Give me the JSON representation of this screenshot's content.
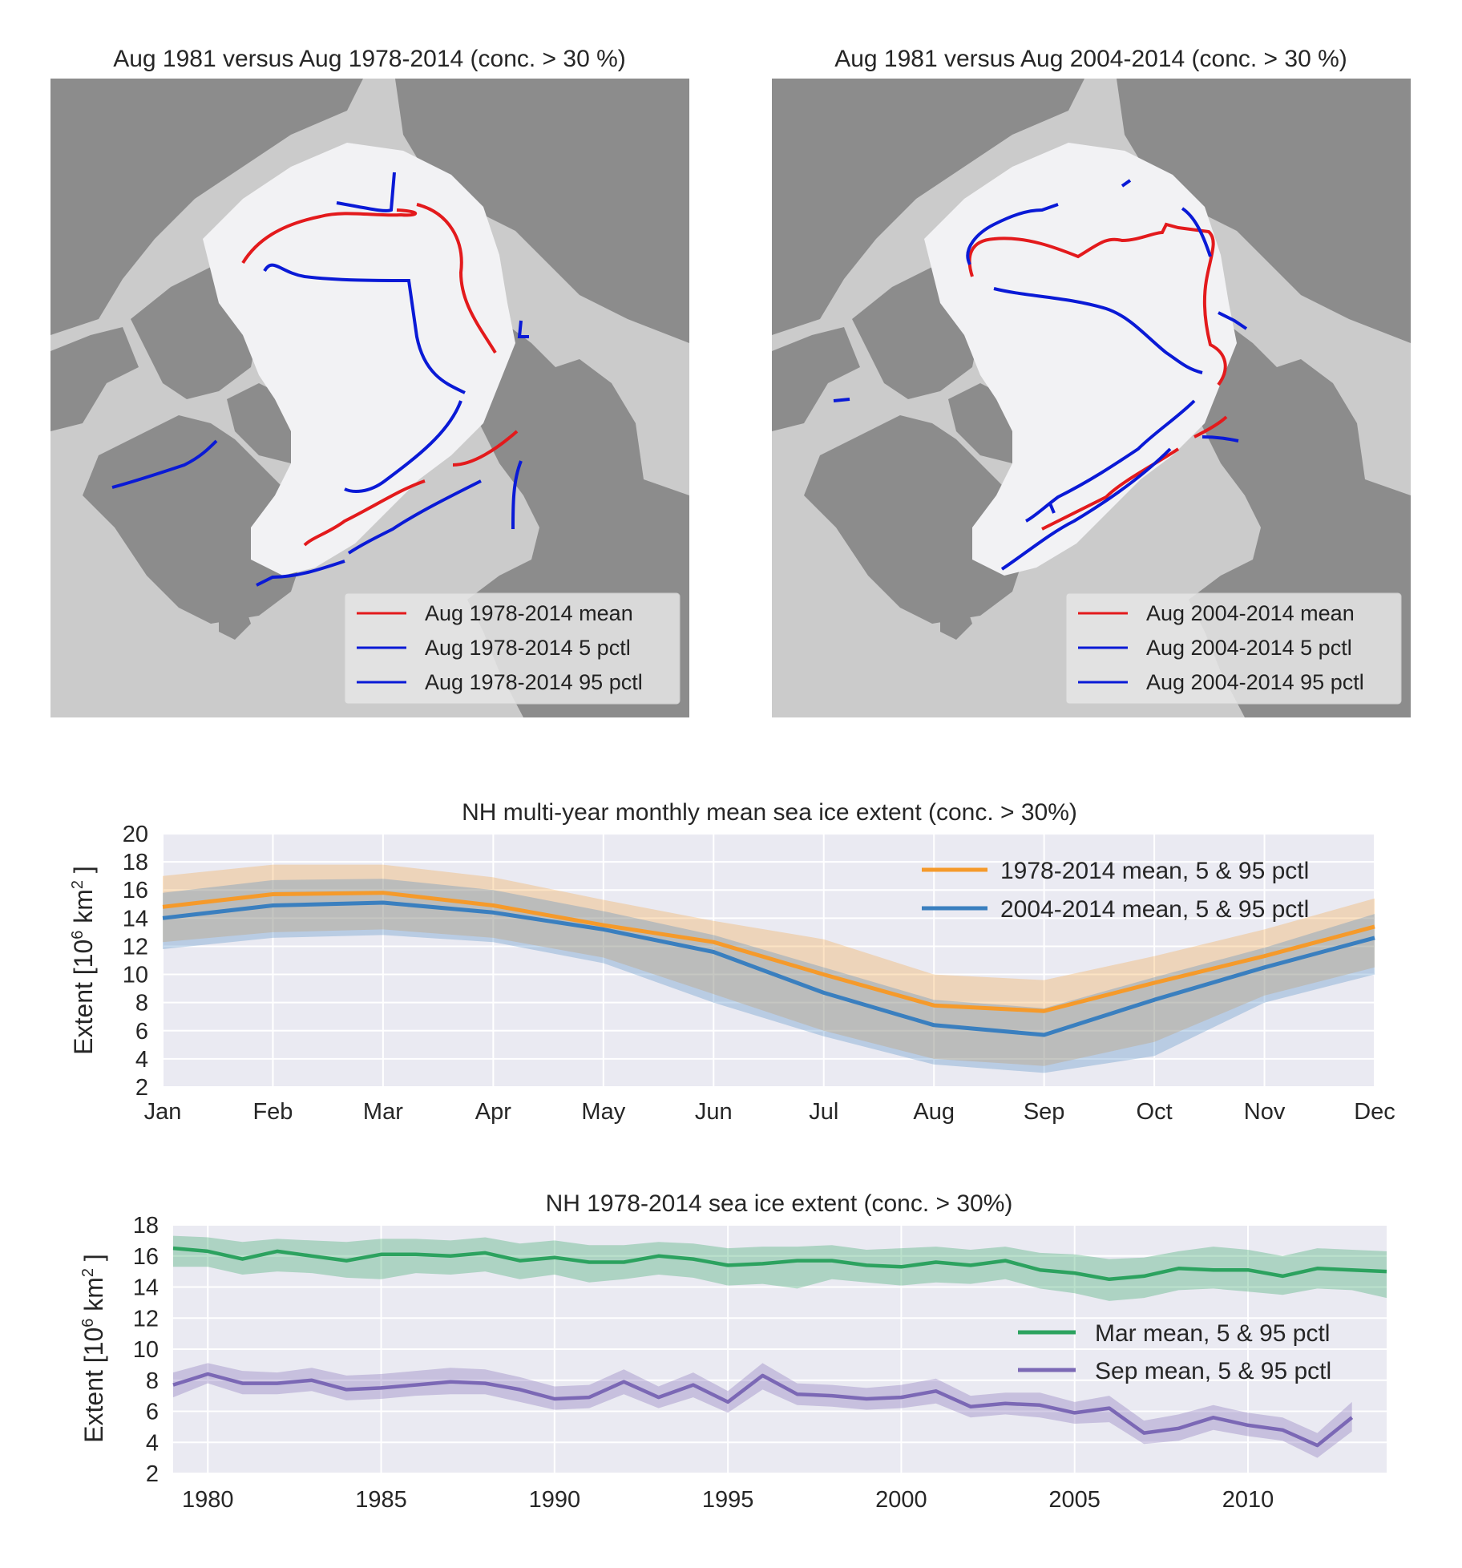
{
  "colors": {
    "mean_line": "#e31a1c",
    "pctl_line": "#0a1ad6",
    "land": "#8c8c8c",
    "ocean": "#cbcbcb",
    "ice": "#f2f2f4",
    "axes_bg": "#eaeaf2",
    "orange": "#f59a2b",
    "blue": "#3a7fbf",
    "green": "#2ca25f",
    "purple": "#7b68b5"
  },
  "maps": [
    {
      "title": "Aug 1981 versus Aug 1978-2014 (conc. > 30 %)",
      "legend": [
        "Aug 1978-2014 mean",
        "Aug 1978-2014 5 pctl",
        "Aug 1978-2014 95 pctl"
      ]
    },
    {
      "title": "Aug 1981 versus Aug 2004-2014 (conc. > 30 %)",
      "legend": [
        "Aug 2004-2014 mean",
        "Aug 2004-2014 5 pctl",
        "Aug 2004-2014 95 pctl"
      ]
    }
  ],
  "chart_data": [
    {
      "type": "line",
      "title": "NH multi-year monthly mean sea ice extent (conc. > 30%)",
      "ylabel": "Extent [10^6 km^2 ]",
      "ylabel_parts": {
        "pre": "Extent [10",
        "exp1": "6",
        "mid": " km",
        "exp2": "2",
        "post": " ]"
      },
      "categories": [
        "Jan",
        "Feb",
        "Mar",
        "Apr",
        "May",
        "Jun",
        "Jul",
        "Aug",
        "Sep",
        "Oct",
        "Nov",
        "Dec"
      ],
      "ylim": [
        2,
        20
      ],
      "yticks": [
        2,
        4,
        6,
        8,
        10,
        12,
        14,
        16,
        18,
        20
      ],
      "grid": true,
      "legend_position": "top-right",
      "series": [
        {
          "name": "1978-2014 mean, 5 & 95 pctl",
          "color": "orange",
          "mean": [
            14.8,
            15.7,
            15.8,
            14.9,
            13.5,
            12.3,
            10.0,
            7.8,
            7.4,
            9.4,
            11.3,
            13.4
          ],
          "p5": [
            12.3,
            13.0,
            13.2,
            12.6,
            11.2,
            8.6,
            6.0,
            4.0,
            3.5,
            5.2,
            8.5,
            10.5
          ],
          "p95": [
            17.0,
            17.8,
            17.8,
            16.9,
            15.3,
            13.8,
            12.5,
            10.0,
            9.6,
            11.3,
            13.2,
            15.4
          ]
        },
        {
          "name": "2004-2014 mean, 5 & 95 pctl",
          "color": "blue",
          "mean": [
            14.0,
            14.9,
            15.1,
            14.4,
            13.2,
            11.6,
            8.7,
            6.4,
            5.7,
            8.2,
            10.5,
            12.6
          ],
          "p5": [
            11.8,
            12.6,
            12.8,
            12.3,
            10.8,
            8.0,
            5.6,
            3.6,
            3.0,
            4.2,
            8.0,
            10.0
          ],
          "p95": [
            15.8,
            16.7,
            16.8,
            16.0,
            14.5,
            12.8,
            10.5,
            8.2,
            7.6,
            9.8,
            11.9,
            14.3
          ]
        }
      ]
    },
    {
      "type": "line",
      "title": "NH 1978-2014 sea ice extent (conc. > 30%)",
      "ylabel": "Extent [10^6 km^2 ]",
      "ylabel_parts": {
        "pre": "Extent [10",
        "exp1": "6",
        "mid": " km",
        "exp2": "2",
        "post": " ]"
      },
      "xlim": [
        1979,
        2014
      ],
      "xticks": [
        1980,
        1985,
        1990,
        1995,
        2000,
        2005,
        2010
      ],
      "ylim": [
        2,
        18
      ],
      "yticks": [
        2,
        4,
        6,
        8,
        10,
        12,
        14,
        16,
        18
      ],
      "grid": true,
      "legend_position": "center-right",
      "series": [
        {
          "name": "Mar mean, 5 & 95 pctl",
          "color": "green",
          "x": [
            1979,
            1980,
            1981,
            1982,
            1983,
            1984,
            1985,
            1986,
            1987,
            1988,
            1989,
            1990,
            1991,
            1992,
            1993,
            1994,
            1995,
            1996,
            1997,
            1998,
            1999,
            2000,
            2001,
            2002,
            2003,
            2004,
            2005,
            2006,
            2007,
            2008,
            2009,
            2010,
            2011,
            2012,
            2013,
            2014
          ],
          "mean": [
            16.5,
            16.3,
            15.8,
            16.3,
            16.0,
            15.7,
            16.1,
            16.1,
            16.0,
            16.2,
            15.7,
            15.9,
            15.6,
            15.6,
            16.0,
            15.8,
            15.4,
            15.5,
            15.7,
            15.7,
            15.4,
            15.3,
            15.6,
            15.4,
            15.7,
            15.1,
            14.9,
            14.5,
            14.7,
            15.2,
            15.1,
            15.1,
            14.7,
            15.2,
            15.1,
            15.0
          ],
          "p5": [
            15.3,
            15.3,
            14.8,
            15.0,
            14.9,
            14.6,
            14.5,
            14.9,
            14.8,
            15.0,
            14.5,
            14.8,
            14.3,
            14.5,
            14.8,
            14.6,
            14.1,
            14.2,
            13.9,
            14.5,
            14.3,
            14.1,
            14.3,
            14.2,
            14.5,
            13.9,
            13.6,
            13.1,
            13.3,
            13.8,
            13.9,
            13.7,
            13.5,
            13.9,
            13.8,
            13.3
          ],
          "p95": [
            17.3,
            17.2,
            16.9,
            17.1,
            17.0,
            16.9,
            17.1,
            17.1,
            17.0,
            17.2,
            16.8,
            17.0,
            16.7,
            16.7,
            16.9,
            16.8,
            16.5,
            16.6,
            16.6,
            16.7,
            16.4,
            16.5,
            16.6,
            16.4,
            16.6,
            16.2,
            16.1,
            15.8,
            15.9,
            16.3,
            16.6,
            16.4,
            16.0,
            16.5,
            16.4,
            16.3
          ]
        },
        {
          "name": "Sep mean, 5 & 95 pctl",
          "color": "purple",
          "x": [
            1979,
            1980,
            1981,
            1982,
            1983,
            1984,
            1985,
            1986,
            1987,
            1988,
            1989,
            1990,
            1991,
            1992,
            1993,
            1994,
            1995,
            1996,
            1997,
            1998,
            1999,
            2000,
            2001,
            2002,
            2003,
            2004,
            2005,
            2006,
            2007,
            2008,
            2009,
            2010,
            2011,
            2012,
            2013
          ],
          "mean": [
            7.7,
            8.4,
            7.8,
            7.8,
            8.0,
            7.4,
            7.5,
            7.7,
            7.9,
            7.8,
            7.4,
            6.8,
            6.9,
            7.9,
            6.9,
            7.7,
            6.6,
            8.3,
            7.1,
            7.0,
            6.8,
            6.9,
            7.3,
            6.3,
            6.5,
            6.4,
            5.9,
            6.2,
            4.6,
            4.9,
            5.6,
            5.1,
            4.8,
            3.8,
            5.6
          ],
          "p5": [
            6.9,
            7.8,
            7.1,
            7.1,
            7.3,
            6.7,
            6.8,
            7.0,
            7.1,
            7.1,
            6.6,
            6.1,
            6.2,
            7.1,
            6.2,
            6.9,
            5.9,
            7.4,
            6.4,
            6.3,
            6.1,
            6.2,
            6.5,
            5.6,
            5.8,
            5.6,
            5.2,
            5.3,
            3.9,
            4.1,
            4.8,
            4.4,
            4.1,
            3.0,
            4.7
          ],
          "p95": [
            8.5,
            9.1,
            8.6,
            8.5,
            8.8,
            8.3,
            8.4,
            8.6,
            8.8,
            8.7,
            8.2,
            7.6,
            7.7,
            8.7,
            7.6,
            8.5,
            7.3,
            9.1,
            7.8,
            7.7,
            7.5,
            7.7,
            8.1,
            7.0,
            7.2,
            7.2,
            6.6,
            7.0,
            5.4,
            5.8,
            6.4,
            5.9,
            5.6,
            4.6,
            6.6
          ]
        }
      ]
    }
  ]
}
